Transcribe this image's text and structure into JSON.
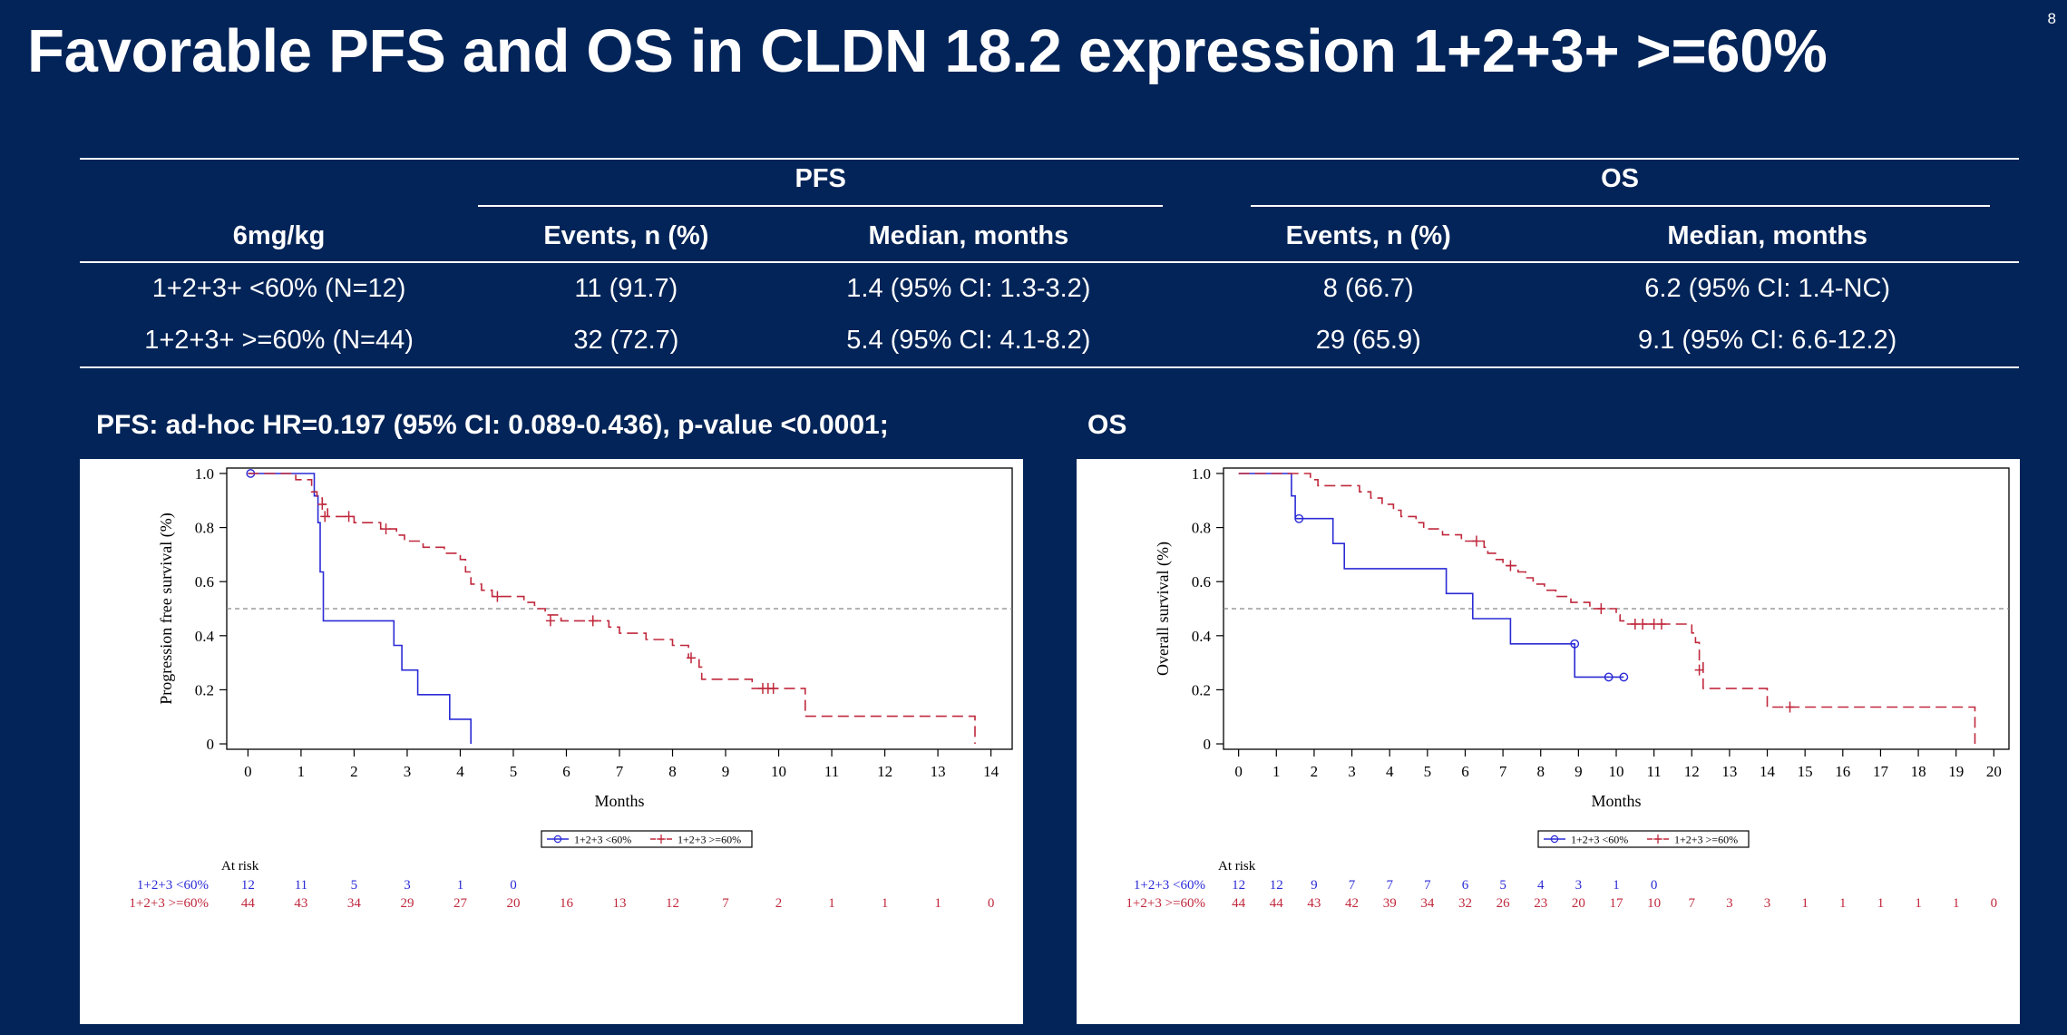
{
  "slide": {
    "title": "Favorable PFS and OS in CLDN 18.2 expression 1+2+3+ >=60%",
    "page_number": "8"
  },
  "table": {
    "group_headers": [
      "PFS",
      "OS"
    ],
    "column_headers": [
      "6mg/kg",
      "Events, n (%)",
      "Median, months",
      "Events, n (%)",
      "Median, months"
    ],
    "rows": [
      [
        "1+2+3+ <60% (N=12)",
        "11 (91.7)",
        "1.4 (95% CI: 1.3-3.2)",
        "8 (66.7)",
        "6.2 (95% CI: 1.4-NC)"
      ],
      [
        "1+2+3+ >=60% (N=44)",
        "32 (72.7)",
        "5.4 (95% CI: 4.1-8.2)",
        "29 (65.9)",
        "9.1 (95% CI: 6.6-12.2)"
      ]
    ]
  },
  "headings": {
    "pfs": "PFS: ad-hoc HR=0.197 (95% CI: 0.089-0.436), p-value <0.0001;",
    "os": "OS"
  },
  "chart_data": [
    {
      "type": "line",
      "id": "pfs",
      "title": "",
      "xlabel": "Months",
      "ylabel": "Progression free survival (%)",
      "xlim": [
        -0.4,
        14.4
      ],
      "ylim": [
        -0.02,
        1.02
      ],
      "xticks": [
        0,
        1,
        2,
        3,
        4,
        5,
        6,
        7,
        8,
        9,
        10,
        11,
        12,
        13,
        14
      ],
      "yticks": [
        0,
        0.2,
        0.4,
        0.6,
        0.8,
        1.0
      ],
      "ytick_labels": [
        "0",
        "0.2",
        "0.4",
        "0.6",
        "0.8",
        "1.0"
      ],
      "reference_line": 0.5,
      "series": [
        {
          "name": "1+2+3 <60%",
          "color": "#2b2bd6",
          "dash": false,
          "steps": [
            [
              0,
              1.0
            ],
            [
              1.25,
              1.0
            ],
            [
              1.25,
              0.917
            ],
            [
              1.32,
              0.917
            ],
            [
              1.32,
              0.818
            ],
            [
              1.36,
              0.818
            ],
            [
              1.36,
              0.636
            ],
            [
              1.42,
              0.636
            ],
            [
              1.42,
              0.455
            ],
            [
              2.75,
              0.455
            ],
            [
              2.75,
              0.364
            ],
            [
              2.9,
              0.364
            ],
            [
              2.9,
              0.273
            ],
            [
              3.2,
              0.273
            ],
            [
              3.2,
              0.182
            ],
            [
              3.8,
              0.182
            ],
            [
              3.8,
              0.091
            ],
            [
              4.2,
              0.091
            ],
            [
              4.2,
              0.0
            ]
          ],
          "censors": [
            [
              0.05,
              1.0
            ]
          ],
          "censor_marker": "circle"
        },
        {
          "name": "1+2+3 >=60%",
          "color": "#c0283c",
          "dash": true,
          "steps": [
            [
              0,
              1.0
            ],
            [
              0.9,
              1.0
            ],
            [
              0.9,
              0.977
            ],
            [
              1.2,
              0.977
            ],
            [
              1.2,
              0.932
            ],
            [
              1.3,
              0.932
            ],
            [
              1.3,
              0.909
            ],
            [
              1.4,
              0.909
            ],
            [
              1.4,
              0.886
            ],
            [
              1.5,
              0.886
            ],
            [
              1.5,
              0.841
            ],
            [
              2.0,
              0.841
            ],
            [
              2.0,
              0.818
            ],
            [
              2.5,
              0.818
            ],
            [
              2.5,
              0.795
            ],
            [
              2.8,
              0.795
            ],
            [
              2.8,
              0.772
            ],
            [
              2.95,
              0.772
            ],
            [
              2.95,
              0.75
            ],
            [
              3.3,
              0.75
            ],
            [
              3.3,
              0.727
            ],
            [
              3.7,
              0.727
            ],
            [
              3.7,
              0.705
            ],
            [
              4.0,
              0.705
            ],
            [
              4.0,
              0.682
            ],
            [
              4.1,
              0.682
            ],
            [
              4.1,
              0.636
            ],
            [
              4.2,
              0.636
            ],
            [
              4.2,
              0.591
            ],
            [
              4.4,
              0.591
            ],
            [
              4.4,
              0.568
            ],
            [
              4.6,
              0.568
            ],
            [
              4.6,
              0.545
            ],
            [
              5.2,
              0.545
            ],
            [
              5.2,
              0.523
            ],
            [
              5.4,
              0.523
            ],
            [
              5.4,
              0.5
            ],
            [
              5.6,
              0.5
            ],
            [
              5.6,
              0.477
            ],
            [
              5.9,
              0.477
            ],
            [
              5.9,
              0.455
            ],
            [
              6.8,
              0.455
            ],
            [
              6.8,
              0.432
            ],
            [
              7.0,
              0.432
            ],
            [
              7.0,
              0.409
            ],
            [
              7.5,
              0.409
            ],
            [
              7.5,
              0.386
            ],
            [
              8.0,
              0.386
            ],
            [
              8.0,
              0.364
            ],
            [
              8.3,
              0.364
            ],
            [
              8.3,
              0.318
            ],
            [
              8.5,
              0.318
            ],
            [
              8.5,
              0.284
            ],
            [
              8.55,
              0.284
            ],
            [
              8.55,
              0.239
            ],
            [
              9.5,
              0.239
            ],
            [
              9.5,
              0.205
            ],
            [
              10.5,
              0.205
            ],
            [
              10.5,
              0.102
            ],
            [
              13.7,
              0.102
            ],
            [
              13.7,
              0.0
            ]
          ],
          "censors": [
            [
              1.4,
              0.886
            ],
            [
              1.45,
              0.841
            ],
            [
              1.9,
              0.841
            ],
            [
              2.6,
              0.795
            ],
            [
              4.7,
              0.545
            ],
            [
              5.7,
              0.455
            ],
            [
              6.5,
              0.455
            ],
            [
              8.35,
              0.318
            ],
            [
              9.7,
              0.205
            ],
            [
              9.8,
              0.205
            ],
            [
              9.9,
              0.205
            ]
          ],
          "censor_marker": "plus"
        }
      ],
      "legend": [
        "1+2+3 <60%",
        "1+2+3 >=60%"
      ],
      "legend_position": "bottom",
      "at_risk": {
        "label": "At risk",
        "times": [
          0,
          1,
          2,
          3,
          4,
          5,
          6,
          7,
          8,
          9,
          10,
          11,
          12,
          13,
          14
        ],
        "rows": [
          {
            "name": "1+2+3 <60%",
            "counts": [
              "12",
              "11",
              "5",
              "3",
              "1",
              "0"
            ]
          },
          {
            "name": "1+2+3 >=60%",
            "counts": [
              "44",
              "43",
              "34",
              "29",
              "27",
              "20",
              "16",
              "13",
              "12",
              "7",
              "2",
              "1",
              "1",
              "1",
              "0"
            ]
          }
        ]
      }
    },
    {
      "type": "line",
      "id": "os",
      "title": "",
      "xlabel": "Months",
      "ylabel": "Overall survival (%)",
      "xlim": [
        -0.4,
        20.4
      ],
      "ylim": [
        -0.02,
        1.02
      ],
      "xticks": [
        0,
        1,
        2,
        3,
        4,
        5,
        6,
        7,
        8,
        9,
        10,
        11,
        12,
        13,
        14,
        15,
        16,
        17,
        18,
        19,
        20
      ],
      "yticks": [
        0,
        0.2,
        0.4,
        0.6,
        0.8,
        1.0
      ],
      "ytick_labels": [
        "0",
        "0.2",
        "0.4",
        "0.6",
        "0.8",
        "1.0"
      ],
      "reference_line": 0.5,
      "series": [
        {
          "name": "1+2+3 <60%",
          "color": "#2b2bd6",
          "dash": false,
          "steps": [
            [
              0,
              1.0
            ],
            [
              1.4,
              1.0
            ],
            [
              1.4,
              0.917
            ],
            [
              1.5,
              0.917
            ],
            [
              1.5,
              0.833
            ],
            [
              2.5,
              0.833
            ],
            [
              2.5,
              0.741
            ],
            [
              2.8,
              0.741
            ],
            [
              2.8,
              0.648
            ],
            [
              5.5,
              0.648
            ],
            [
              5.5,
              0.556
            ],
            [
              6.2,
              0.556
            ],
            [
              6.2,
              0.463
            ],
            [
              7.2,
              0.463
            ],
            [
              7.2,
              0.37
            ],
            [
              8.9,
              0.37
            ],
            [
              8.9,
              0.247
            ],
            [
              10.2,
              0.247
            ]
          ],
          "censors": [
            [
              1.6,
              0.833
            ],
            [
              8.9,
              0.37
            ],
            [
              9.8,
              0.247
            ],
            [
              10.2,
              0.247
            ]
          ],
          "censor_marker": "circle"
        },
        {
          "name": "1+2+3 >=60%",
          "color": "#c0283c",
          "dash": true,
          "steps": [
            [
              0,
              1.0
            ],
            [
              1.9,
              1.0
            ],
            [
              1.9,
              0.977
            ],
            [
              2.1,
              0.977
            ],
            [
              2.1,
              0.955
            ],
            [
              3.2,
              0.955
            ],
            [
              3.2,
              0.932
            ],
            [
              3.5,
              0.932
            ],
            [
              3.5,
              0.909
            ],
            [
              3.8,
              0.909
            ],
            [
              3.8,
              0.886
            ],
            [
              4.1,
              0.886
            ],
            [
              4.1,
              0.864
            ],
            [
              4.3,
              0.864
            ],
            [
              4.3,
              0.841
            ],
            [
              4.7,
              0.841
            ],
            [
              4.7,
              0.818
            ],
            [
              4.9,
              0.818
            ],
            [
              4.9,
              0.795
            ],
            [
              5.4,
              0.795
            ],
            [
              5.4,
              0.773
            ],
            [
              5.9,
              0.773
            ],
            [
              5.9,
              0.75
            ],
            [
              6.5,
              0.75
            ],
            [
              6.5,
              0.727
            ],
            [
              6.6,
              0.727
            ],
            [
              6.6,
              0.705
            ],
            [
              6.8,
              0.705
            ],
            [
              6.8,
              0.682
            ],
            [
              7.0,
              0.682
            ],
            [
              7.0,
              0.659
            ],
            [
              7.4,
              0.659
            ],
            [
              7.4,
              0.636
            ],
            [
              7.6,
              0.636
            ],
            [
              7.6,
              0.614
            ],
            [
              7.8,
              0.614
            ],
            [
              7.8,
              0.591
            ],
            [
              8.1,
              0.591
            ],
            [
              8.1,
              0.568
            ],
            [
              8.4,
              0.568
            ],
            [
              8.4,
              0.545
            ],
            [
              8.8,
              0.545
            ],
            [
              8.8,
              0.523
            ],
            [
              9.3,
              0.523
            ],
            [
              9.3,
              0.5
            ],
            [
              10.0,
              0.5
            ],
            [
              10.0,
              0.477
            ],
            [
              10.1,
              0.477
            ],
            [
              10.1,
              0.455
            ],
            [
              10.2,
              0.455
            ],
            [
              10.2,
              0.443
            ],
            [
              12.0,
              0.443
            ],
            [
              12.0,
              0.41
            ],
            [
              12.1,
              0.41
            ],
            [
              12.1,
              0.375
            ],
            [
              12.2,
              0.375
            ],
            [
              12.2,
              0.307
            ],
            [
              12.3,
              0.307
            ],
            [
              12.3,
              0.205
            ],
            [
              14.0,
              0.205
            ],
            [
              14.0,
              0.136
            ],
            [
              19.5,
              0.136
            ],
            [
              19.5,
              0.0
            ]
          ],
          "censors": [
            [
              6.3,
              0.75
            ],
            [
              7.2,
              0.659
            ],
            [
              9.6,
              0.5
            ],
            [
              10.5,
              0.443
            ],
            [
              10.7,
              0.443
            ],
            [
              11.0,
              0.443
            ],
            [
              11.2,
              0.443
            ],
            [
              12.2,
              0.273
            ],
            [
              14.6,
              0.136
            ]
          ],
          "censor_marker": "plus"
        }
      ],
      "legend": [
        "1+2+3 <60%",
        "1+2+3 >=60%"
      ],
      "legend_position": "bottom",
      "at_risk": {
        "label": "At risk",
        "times": [
          0,
          1,
          2,
          3,
          4,
          5,
          6,
          7,
          8,
          9,
          10,
          11,
          12,
          13,
          14,
          15,
          16,
          17,
          18,
          19,
          20
        ],
        "rows": [
          {
            "name": "1+2+3 <60%",
            "counts": [
              "12",
              "12",
              "9",
              "7",
              "7",
              "7",
              "6",
              "5",
              "4",
              "3",
              "1",
              "0"
            ]
          },
          {
            "name": "1+2+3 >=60%",
            "counts": [
              "44",
              "44",
              "43",
              "42",
              "39",
              "34",
              "32",
              "26",
              "23",
              "20",
              "17",
              "10",
              "7",
              "3",
              "3",
              "1",
              "1",
              "1",
              "1",
              "1",
              "0"
            ]
          }
        ]
      }
    }
  ]
}
